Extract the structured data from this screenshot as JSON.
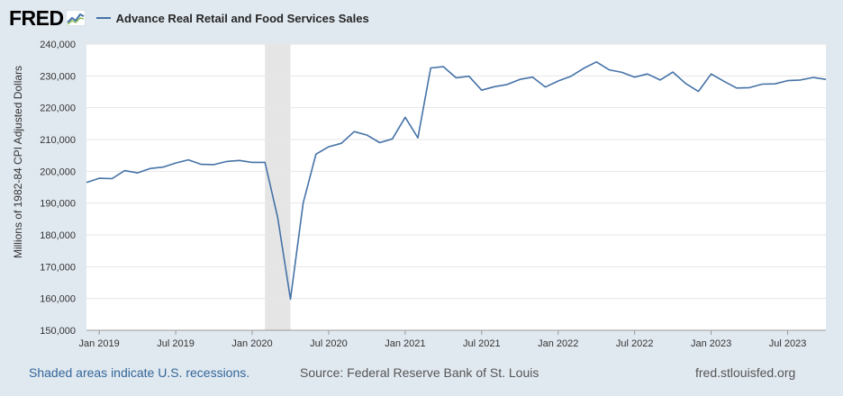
{
  "header": {
    "logo_text": "FRED",
    "logo_icon": "fred-graph-icon"
  },
  "footer": {
    "recessions_note": "Shaded areas indicate U.S. recessions.",
    "source": "Source: Federal Reserve Bank of St. Louis",
    "url": "fred.stlouisfed.org"
  },
  "colors": {
    "background": "#e1e9f0",
    "plot_background": "#ffffff",
    "series_line": "#4572a7",
    "recession_shade": "#e5e5e5",
    "footer_link": "#336699"
  },
  "chart_data": {
    "type": "line",
    "ylabel": "Millions of 1982-84 CPI Adjusted Dollars",
    "xlabel": "",
    "ylim": [
      150000,
      240000
    ],
    "y_ticks": [
      150000,
      160000,
      170000,
      180000,
      190000,
      200000,
      210000,
      220000,
      230000,
      240000
    ],
    "y_tick_labels": [
      "150,000",
      "160,000",
      "170,000",
      "180,000",
      "190,000",
      "200,000",
      "210,000",
      "220,000",
      "230,000",
      "240,000"
    ],
    "x_ticks": [
      "2019-01",
      "2019-07",
      "2020-01",
      "2020-07",
      "2021-01",
      "2021-07",
      "2022-01",
      "2022-07",
      "2023-01",
      "2023-07"
    ],
    "x_tick_labels": [
      "Jan 2019",
      "Jul 2019",
      "Jan 2020",
      "Jul 2020",
      "Jan 2021",
      "Jul 2021",
      "Jan 2022",
      "Jul 2022",
      "Jan 2023",
      "Jul 2023"
    ],
    "x_range": [
      "2018-12",
      "2023-10"
    ],
    "grid": true,
    "legend_position": "top-left",
    "recessions": [
      {
        "start": "2020-02",
        "end": "2020-04"
      }
    ],
    "series": [
      {
        "name": "Advance Real Retail and Food Services Sales",
        "color": "#4572a7",
        "x": [
          "2018-12",
          "2019-01",
          "2019-02",
          "2019-03",
          "2019-04",
          "2019-05",
          "2019-06",
          "2019-07",
          "2019-08",
          "2019-09",
          "2019-10",
          "2019-11",
          "2019-12",
          "2020-01",
          "2020-02",
          "2020-03",
          "2020-04",
          "2020-05",
          "2020-06",
          "2020-07",
          "2020-08",
          "2020-09",
          "2020-10",
          "2020-11",
          "2020-12",
          "2021-01",
          "2021-02",
          "2021-03",
          "2021-04",
          "2021-05",
          "2021-06",
          "2021-07",
          "2021-08",
          "2021-09",
          "2021-10",
          "2021-11",
          "2021-12",
          "2022-01",
          "2022-02",
          "2022-03",
          "2022-04",
          "2022-05",
          "2022-06",
          "2022-07",
          "2022-08",
          "2022-09",
          "2022-10",
          "2022-11",
          "2022-12",
          "2023-01",
          "2023-02",
          "2023-03",
          "2023-04",
          "2023-05",
          "2023-06",
          "2023-07",
          "2023-08",
          "2023-09",
          "2023-10"
        ],
        "values": [
          196500,
          197800,
          197700,
          200200,
          199500,
          200900,
          201300,
          202600,
          203600,
          202200,
          202100,
          203100,
          203400,
          202800,
          202800,
          185500,
          159800,
          190000,
          205400,
          207700,
          208800,
          212500,
          211400,
          209000,
          210200,
          217000,
          210500,
          232500,
          232900,
          229400,
          229900,
          225500,
          226600,
          227300,
          228900,
          229600,
          226500,
          228400,
          229900,
          232400,
          234400,
          231900,
          231100,
          229600,
          230600,
          228700,
          231200,
          227600,
          225100,
          230600,
          228300,
          226200,
          226300,
          227400,
          227500,
          228500,
          228700,
          229500,
          228900
        ]
      }
    ]
  }
}
